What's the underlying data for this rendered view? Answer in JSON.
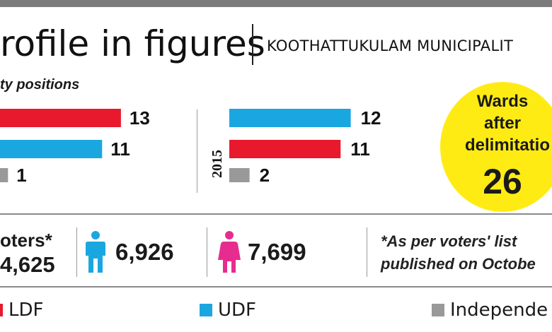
{
  "title": "rofile in figures",
  "subtitle": "KOOTHATTUKULAM MUNICIPALIT",
  "section_heading": "ty positions",
  "colors": {
    "ldf": "#e8192c",
    "udf": "#1aa7e0",
    "independent": "#999999",
    "circle": "#ffeb14",
    "female": "#e62d8f"
  },
  "chart_data": [
    {
      "type": "bar",
      "title": "",
      "year_label": "",
      "categories": [
        "LDF",
        "UDF",
        "Independent"
      ],
      "values": [
        13,
        11,
        1
      ],
      "xlim": [
        0,
        13
      ]
    },
    {
      "type": "bar",
      "title": "",
      "year_label": "2015",
      "categories": [
        "UDF",
        "LDF",
        "Independent"
      ],
      "values": [
        12,
        11,
        2
      ],
      "xlim": [
        0,
        13
      ]
    }
  ],
  "wards": {
    "line1": "Wards",
    "line2": "after",
    "line3": "delimitatio",
    "value": "26"
  },
  "voters": {
    "label": "oters*",
    "total": "4,625",
    "male_icon": "male-person-icon",
    "male": "6,926",
    "female_icon": "female-person-icon",
    "female": "7,699",
    "note_line1": "*As per voters' list",
    "note_line2": "published on Octobe"
  },
  "legend": [
    {
      "label": "LDF",
      "color_key": "ldf"
    },
    {
      "label": "UDF",
      "color_key": "udf"
    },
    {
      "label": "Independe",
      "color_key": "independent"
    }
  ]
}
